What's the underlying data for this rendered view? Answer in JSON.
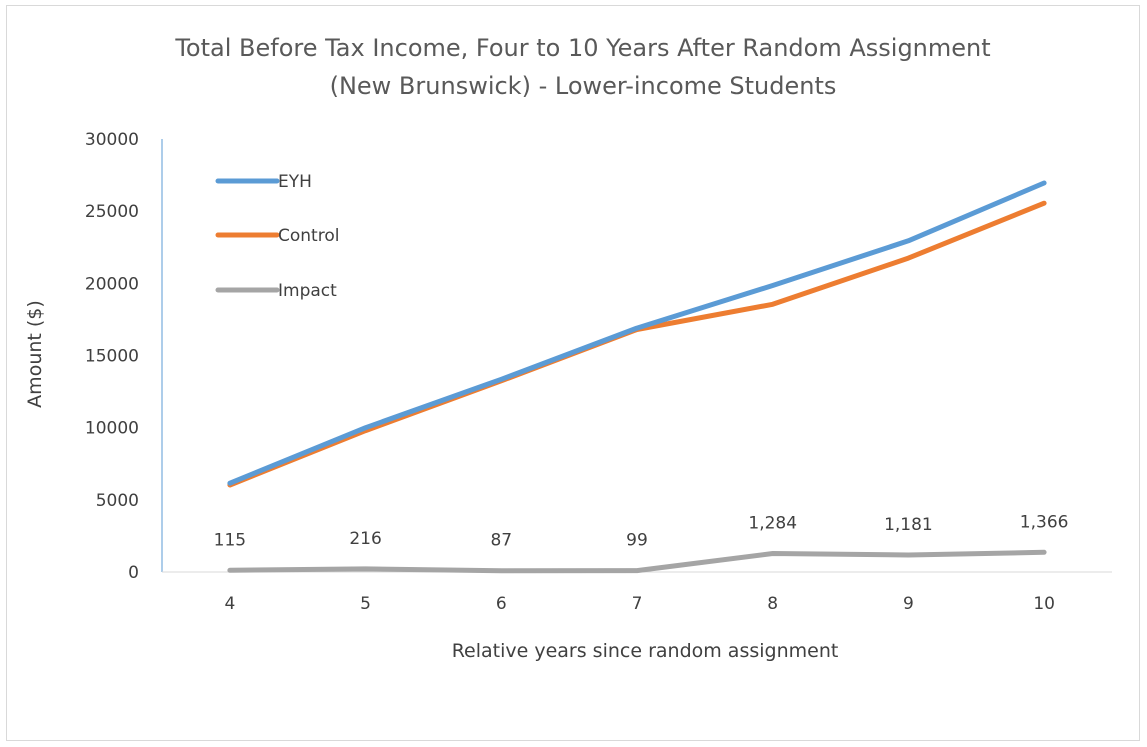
{
  "chart_data": {
    "type": "line",
    "title_lines": [
      "Total Before Tax Income, Four to 10 Years After Random Assignment",
      "(New Brunswick) - Lower-income Students"
    ],
    "xlabel": "Relative years since random assignment",
    "ylabel": "Amount ($)",
    "categories": [
      "4",
      "5",
      "6",
      "7",
      "8",
      "9",
      "10"
    ],
    "ylim": [
      0,
      30000
    ],
    "yticks": [
      "0",
      "5000",
      "10000",
      "15000",
      "20000",
      "25000",
      "30000"
    ],
    "grid": false,
    "legend_position": "top-left",
    "series": [
      {
        "name": "EYH",
        "color": "#5b9bd5",
        "values": [
          6150,
          10000,
          13350,
          16900,
          19850,
          22950,
          26950
        ]
      },
      {
        "name": "Control",
        "color": "#ed7d31",
        "values": [
          6030,
          9800,
          13250,
          16800,
          18550,
          21750,
          25550
        ]
      },
      {
        "name": "Impact",
        "color": "#a5a5a5",
        "values": [
          115,
          216,
          87,
          99,
          1284,
          1181,
          1366
        ],
        "data_labels": [
          "115",
          "216",
          "87",
          "99",
          "1,284",
          "1,181",
          "1,366"
        ]
      }
    ]
  }
}
